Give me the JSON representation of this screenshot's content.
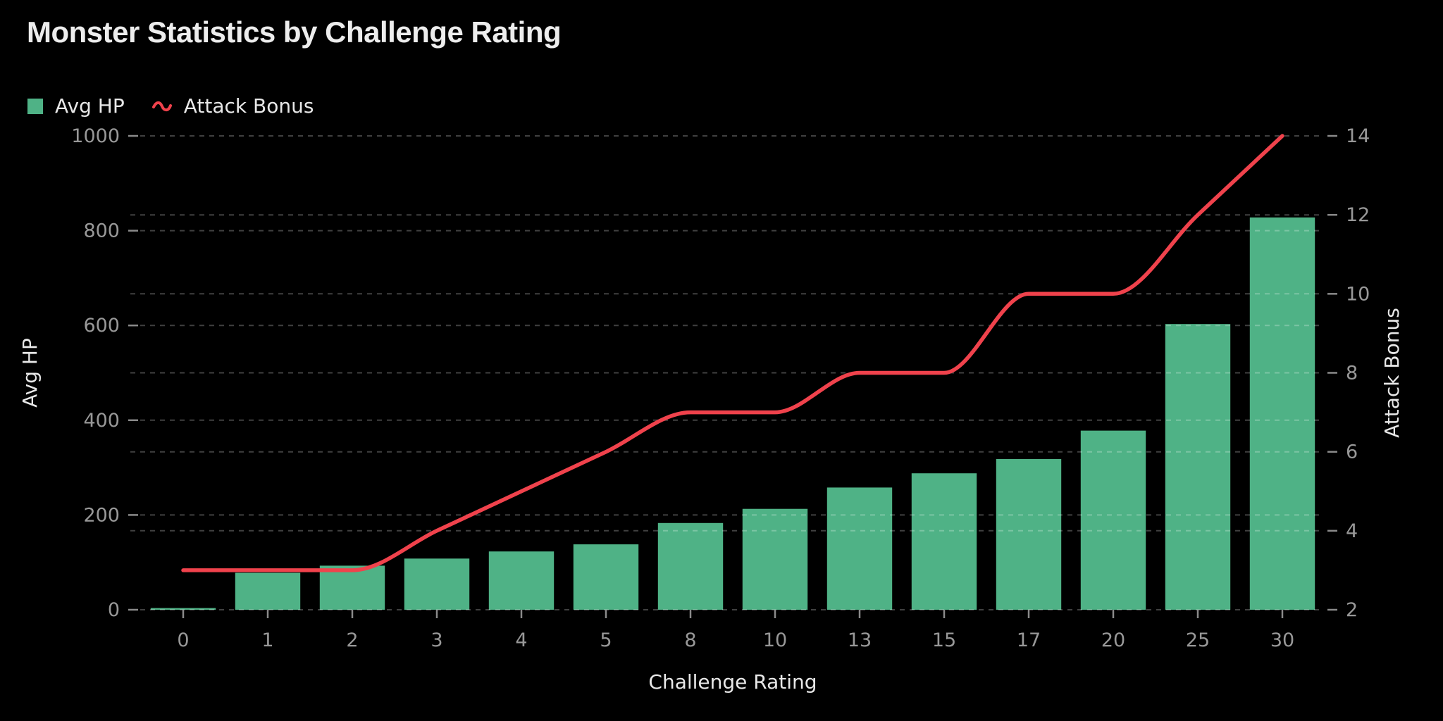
{
  "title": "Monster Statistics by Challenge Rating",
  "legend": [
    {
      "label": "Avg HP",
      "marker": "square",
      "color": "#4fb286"
    },
    {
      "label": "Attack Bonus",
      "marker": "squiggle",
      "color": "#f0424c"
    }
  ],
  "chart_data": {
    "type": "bar+line",
    "categories": [
      "0",
      "1",
      "2",
      "3",
      "4",
      "5",
      "8",
      "10",
      "13",
      "15",
      "17",
      "20",
      "25",
      "30"
    ],
    "series": [
      {
        "name": "Avg HP",
        "type": "bar",
        "axis": "left",
        "color": "#4fb286",
        "values": [
          3.5,
          78,
          93,
          108,
          123,
          138,
          183,
          213,
          258,
          288,
          318,
          378,
          603,
          828
        ]
      },
      {
        "name": "Attack Bonus",
        "type": "line",
        "axis": "right",
        "color": "#f0424c",
        "values": [
          3,
          3,
          3,
          4,
          5,
          6,
          7,
          7,
          8,
          8,
          10,
          10,
          12,
          14
        ]
      }
    ],
    "xlabel": "Challenge Rating",
    "ylabel_left": "Avg HP",
    "ylabel_right": "Attack Bonus",
    "ylim_left": [
      0,
      1000
    ],
    "ylim_right": [
      2,
      14
    ],
    "yticks_left": [
      0,
      200,
      400,
      600,
      800,
      1000
    ],
    "yticks_right": [
      2,
      4,
      6,
      8,
      10,
      12,
      14
    ],
    "grid": "dashed horizontal lines at major ticks of both y-axes",
    "legend_position": "top-left",
    "line_style": "smooth monotone curve"
  },
  "colors": {
    "background": "#000000",
    "bar": "#4fb286",
    "line": "#f0424c",
    "grid": "rgba(255,255,255,0.25)",
    "tick_mark": "#8a8a8a",
    "tick_text": "#989898",
    "axis_title_text": "#e8e8e8",
    "title_text": "#ededed"
  }
}
